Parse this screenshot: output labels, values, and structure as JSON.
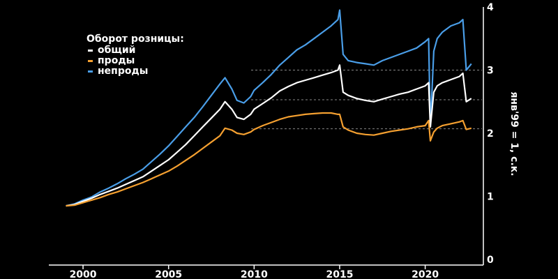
{
  "chart_data": {
    "type": "line",
    "ylabel": "янв'99 = 1, с.к.",
    "xlim": [
      1998.0,
      2023.4
    ],
    "ylim": [
      0,
      4
    ],
    "x_ticks": [
      2000,
      2005,
      2010,
      2015,
      2020
    ],
    "y_ticks": [
      0,
      1,
      2,
      3,
      4
    ],
    "grid": false,
    "legend": {
      "title": "Оборот розницы:",
      "placement": "top-left"
    },
    "reference_lines": [
      {
        "y": 3.0,
        "color": "#888888",
        "style": "dashed"
      },
      {
        "y": 2.53,
        "color": "#888888",
        "style": "dashed"
      },
      {
        "y": 2.07,
        "color": "#888888",
        "style": "dashed"
      }
    ],
    "series": [
      {
        "name": "непроды",
        "color": "#4a9ee8",
        "x": [
          1999.0,
          1999.5,
          2000.0,
          2000.5,
          2001.0,
          2001.5,
          2002.0,
          2002.5,
          2003.0,
          2003.5,
          2004.0,
          2004.5,
          2005.0,
          2005.5,
          2006.0,
          2006.5,
          2007.0,
          2007.5,
          2008.0,
          2008.3,
          2008.7,
          2009.0,
          2009.4,
          2009.8,
          2010.0,
          2010.5,
          2011.0,
          2011.5,
          2012.0,
          2012.5,
          2013.0,
          2013.5,
          2014.0,
          2014.5,
          2014.9,
          2015.0,
          2015.2,
          2015.5,
          2016.0,
          2016.5,
          2017.0,
          2017.5,
          2018.0,
          2018.5,
          2019.0,
          2019.5,
          2020.0,
          2020.2,
          2020.3,
          2020.5,
          2020.7,
          2021.0,
          2021.5,
          2022.0,
          2022.2,
          2022.4,
          2022.7
        ],
        "values": [
          0.85,
          0.88,
          0.94,
          0.99,
          1.07,
          1.13,
          1.2,
          1.28,
          1.35,
          1.43,
          1.55,
          1.67,
          1.8,
          1.95,
          2.1,
          2.25,
          2.42,
          2.6,
          2.78,
          2.88,
          2.7,
          2.52,
          2.48,
          2.58,
          2.68,
          2.8,
          2.93,
          3.08,
          3.2,
          3.32,
          3.4,
          3.5,
          3.6,
          3.7,
          3.8,
          3.95,
          3.25,
          3.15,
          3.12,
          3.1,
          3.08,
          3.15,
          3.2,
          3.25,
          3.3,
          3.35,
          3.45,
          3.5,
          2.1,
          3.3,
          3.5,
          3.6,
          3.7,
          3.75,
          3.8,
          3.0,
          3.1
        ]
      },
      {
        "name": "общий",
        "color": "#ffffff",
        "x": [
          1999.0,
          1999.5,
          2000.0,
          2000.5,
          2001.0,
          2001.5,
          2002.0,
          2002.5,
          2003.0,
          2003.5,
          2004.0,
          2004.5,
          2005.0,
          2005.5,
          2006.0,
          2006.5,
          2007.0,
          2007.5,
          2008.0,
          2008.3,
          2008.7,
          2009.0,
          2009.4,
          2009.8,
          2010.0,
          2010.5,
          2011.0,
          2011.5,
          2012.0,
          2012.5,
          2013.0,
          2013.5,
          2014.0,
          2014.5,
          2014.9,
          2015.0,
          2015.2,
          2015.5,
          2016.0,
          2016.5,
          2017.0,
          2017.5,
          2018.0,
          2018.5,
          2019.0,
          2019.5,
          2020.0,
          2020.2,
          2020.3,
          2020.5,
          2020.7,
          2021.0,
          2021.5,
          2022.0,
          2022.2,
          2022.4,
          2022.7
        ],
        "values": [
          0.85,
          0.87,
          0.92,
          0.97,
          1.03,
          1.08,
          1.13,
          1.19,
          1.25,
          1.31,
          1.4,
          1.49,
          1.58,
          1.7,
          1.82,
          1.96,
          2.1,
          2.24,
          2.38,
          2.5,
          2.38,
          2.25,
          2.22,
          2.3,
          2.38,
          2.47,
          2.56,
          2.67,
          2.74,
          2.8,
          2.84,
          2.88,
          2.92,
          2.96,
          3.0,
          3.08,
          2.65,
          2.6,
          2.55,
          2.52,
          2.5,
          2.54,
          2.58,
          2.62,
          2.65,
          2.7,
          2.75,
          2.8,
          2.1,
          2.65,
          2.75,
          2.8,
          2.85,
          2.9,
          2.95,
          2.5,
          2.55
        ]
      },
      {
        "name": "проды",
        "color": "#f5a030",
        "x": [
          1999.0,
          1999.5,
          2000.0,
          2000.5,
          2001.0,
          2001.5,
          2002.0,
          2002.5,
          2003.0,
          2003.5,
          2004.0,
          2004.5,
          2005.0,
          2005.5,
          2006.0,
          2006.5,
          2007.0,
          2007.5,
          2008.0,
          2008.3,
          2008.7,
          2009.0,
          2009.4,
          2009.8,
          2010.0,
          2010.5,
          2011.0,
          2011.5,
          2012.0,
          2012.5,
          2013.0,
          2013.5,
          2014.0,
          2014.5,
          2014.9,
          2015.0,
          2015.2,
          2015.5,
          2016.0,
          2016.5,
          2017.0,
          2017.5,
          2018.0,
          2018.5,
          2019.0,
          2019.5,
          2020.0,
          2020.2,
          2020.3,
          2020.5,
          2020.7,
          2021.0,
          2021.5,
          2022.0,
          2022.2,
          2022.4,
          2022.7
        ],
        "values": [
          0.85,
          0.86,
          0.9,
          0.94,
          0.98,
          1.03,
          1.07,
          1.12,
          1.17,
          1.22,
          1.28,
          1.34,
          1.4,
          1.48,
          1.57,
          1.66,
          1.76,
          1.86,
          1.96,
          2.08,
          2.05,
          2.0,
          1.98,
          2.02,
          2.06,
          2.12,
          2.17,
          2.22,
          2.26,
          2.28,
          2.3,
          2.31,
          2.32,
          2.32,
          2.3,
          2.3,
          2.1,
          2.05,
          2.0,
          1.98,
          1.97,
          2.0,
          2.03,
          2.05,
          2.07,
          2.1,
          2.12,
          2.2,
          1.88,
          2.02,
          2.08,
          2.12,
          2.15,
          2.18,
          2.2,
          2.06,
          2.08
        ]
      }
    ]
  }
}
